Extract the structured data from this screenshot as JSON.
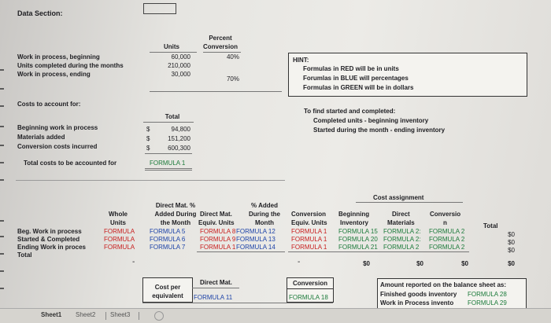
{
  "title": "Data Section:",
  "units_table": {
    "h_units": "Units",
    "h_percent1": "Percent",
    "h_percent2": "Conversion",
    "r1_label": "Work in process, beginning",
    "r2_label": "Units completed during the months",
    "r3_label": "Work in process, ending",
    "r1_units": "60,000",
    "r2_units": "210,000",
    "r3_units": "30,000",
    "r1_pct": "40%",
    "r3_pct": "70%"
  },
  "hint": {
    "title": "HINT:",
    "line1": "Formulas in RED will be in units",
    "line2": "Forumlas in BLUE will percentages",
    "line3": "Formulas in GREEN will be in dollars"
  },
  "costs": {
    "heading": "Costs to account for:",
    "total_header": "Total",
    "r1_label": "Beginning work in process",
    "r2_label": "Materials added",
    "r3_label": "Conversion costs incurred",
    "total_label": "Total costs to be accounted for",
    "currency": "$",
    "r1_val": "94,800",
    "r2_val": "151,200",
    "r3_val": "600,300",
    "total_val": "FORMULA 1"
  },
  "find": {
    "line1": "To find started and completed:",
    "line2": "Completed units - beginning inventory",
    "line3": "Started during the month - ending inventory"
  },
  "assign": {
    "cost_assignment": "Cost assignment",
    "h_whole1": "Whole",
    "h_whole2": "Units",
    "h_dm1": "Direct Mat. %",
    "h_dm2": "Added During",
    "h_dm3": "the Month",
    "h_dmeu1": "Direct Mat.",
    "h_dmeu2": "Equiv. Units",
    "h_pa1": "% Added",
    "h_pa2": "During the",
    "h_pa3": "Month",
    "h_cv1": "Conversion",
    "h_cv2": "Equiv. Units",
    "h_bi1": "Beginning",
    "h_bi2": "Inventory",
    "h_dmat1": "Direct",
    "h_dmat2": "Materials",
    "h_conv1": "Conversio",
    "h_conv2": "n",
    "h_total": "Total",
    "rows": [
      {
        "label": "Beg. Work in process",
        "whole": "FORMULA",
        "dm": "FORMULA 5",
        "dmeu": "FORMULA 8",
        "pa": "FORMULA 12",
        "cveu": "FORMULA 1",
        "bi": "FORMULA 15",
        "dmat": "FORMULA 2:",
        "conv": "FORMULA 2",
        "total": "$0"
      },
      {
        "label": "Started & Completed",
        "whole": "FORMULA",
        "dm": "FORMULA 6",
        "dmeu": "FORMULA 9",
        "pa": "FORMULA 13",
        "cveu": "FORMULA 1",
        "bi": "FORMULA 20",
        "dmat": "FORMULA 2:",
        "conv": "FORMULA 2",
        "total": "$0"
      },
      {
        "label": "Ending Work in proces",
        "whole": "FORMULA",
        "dm": "FORMULA 7",
        "dmeu": "FORMULA 1",
        "pa": "FORMULA 14",
        "cveu": "FORMULA 1",
        "bi": "FORMULA 21",
        "dmat": "FORMULA 2",
        "conv": "FORMULA 2",
        "total": "$0"
      }
    ],
    "total_label": "Total",
    "total_bi": "$0",
    "total_dm": "$0",
    "total_cv": "$0",
    "total_total": "$0"
  },
  "cost_per": {
    "label1": "Cost per",
    "label2": "equivalent",
    "h_dm": "Direct Mat.",
    "h_cv": "Conversion",
    "dm_val": "FORMULA 11",
    "cv_val": "FORMULA 18"
  },
  "balance": {
    "line1": "Amount reported on the balance sheet as:",
    "line2_label": "Finished goods inventory",
    "line2_val": "FORMULA 28",
    "line3_label": "Work in Process invento",
    "line3_val": "FORMULA 29"
  },
  "tabs": [
    "Sheet1",
    "Sheet2",
    "Sheet3"
  ]
}
